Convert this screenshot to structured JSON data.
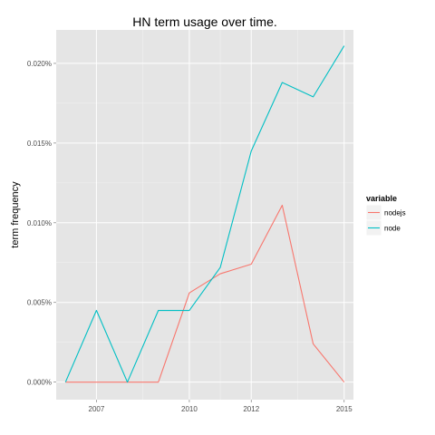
{
  "chart_data": {
    "type": "line",
    "title": "HN term usage over time.",
    "xlabel": "",
    "ylabel": "term frequency",
    "x": [
      2006,
      2007,
      2008,
      2009,
      2010,
      2011,
      2012,
      2013,
      2014,
      2015
    ],
    "xlim": [
      2005.7,
      2015.3
    ],
    "ylim": [
      -0.0011,
      0.0221
    ],
    "x_ticks": [
      2007,
      2010,
      2012,
      2015
    ],
    "x_tick_labels": [
      "2007",
      "2010",
      "2012",
      "2015"
    ],
    "y_ticks": [
      0,
      0.005,
      0.01,
      0.015,
      0.02
    ],
    "y_tick_labels": [
      "0.000%",
      "0.005%",
      "0.010%",
      "0.015%",
      "0.020%"
    ],
    "grid": true,
    "legend_position": "right",
    "legend_title": "variable",
    "series": [
      {
        "name": "nodejs",
        "color": "#F8766D",
        "values": [
          0,
          0,
          0,
          0,
          0.0056,
          0.0068,
          0.0074,
          0.0111,
          0.0024,
          0
        ]
      },
      {
        "name": "node",
        "color": "#00BFC4",
        "values": [
          0,
          0.0045,
          0,
          0.0045,
          0.0045,
          0.0072,
          0.0145,
          0.0188,
          0.0179,
          0.0211
        ]
      }
    ]
  }
}
